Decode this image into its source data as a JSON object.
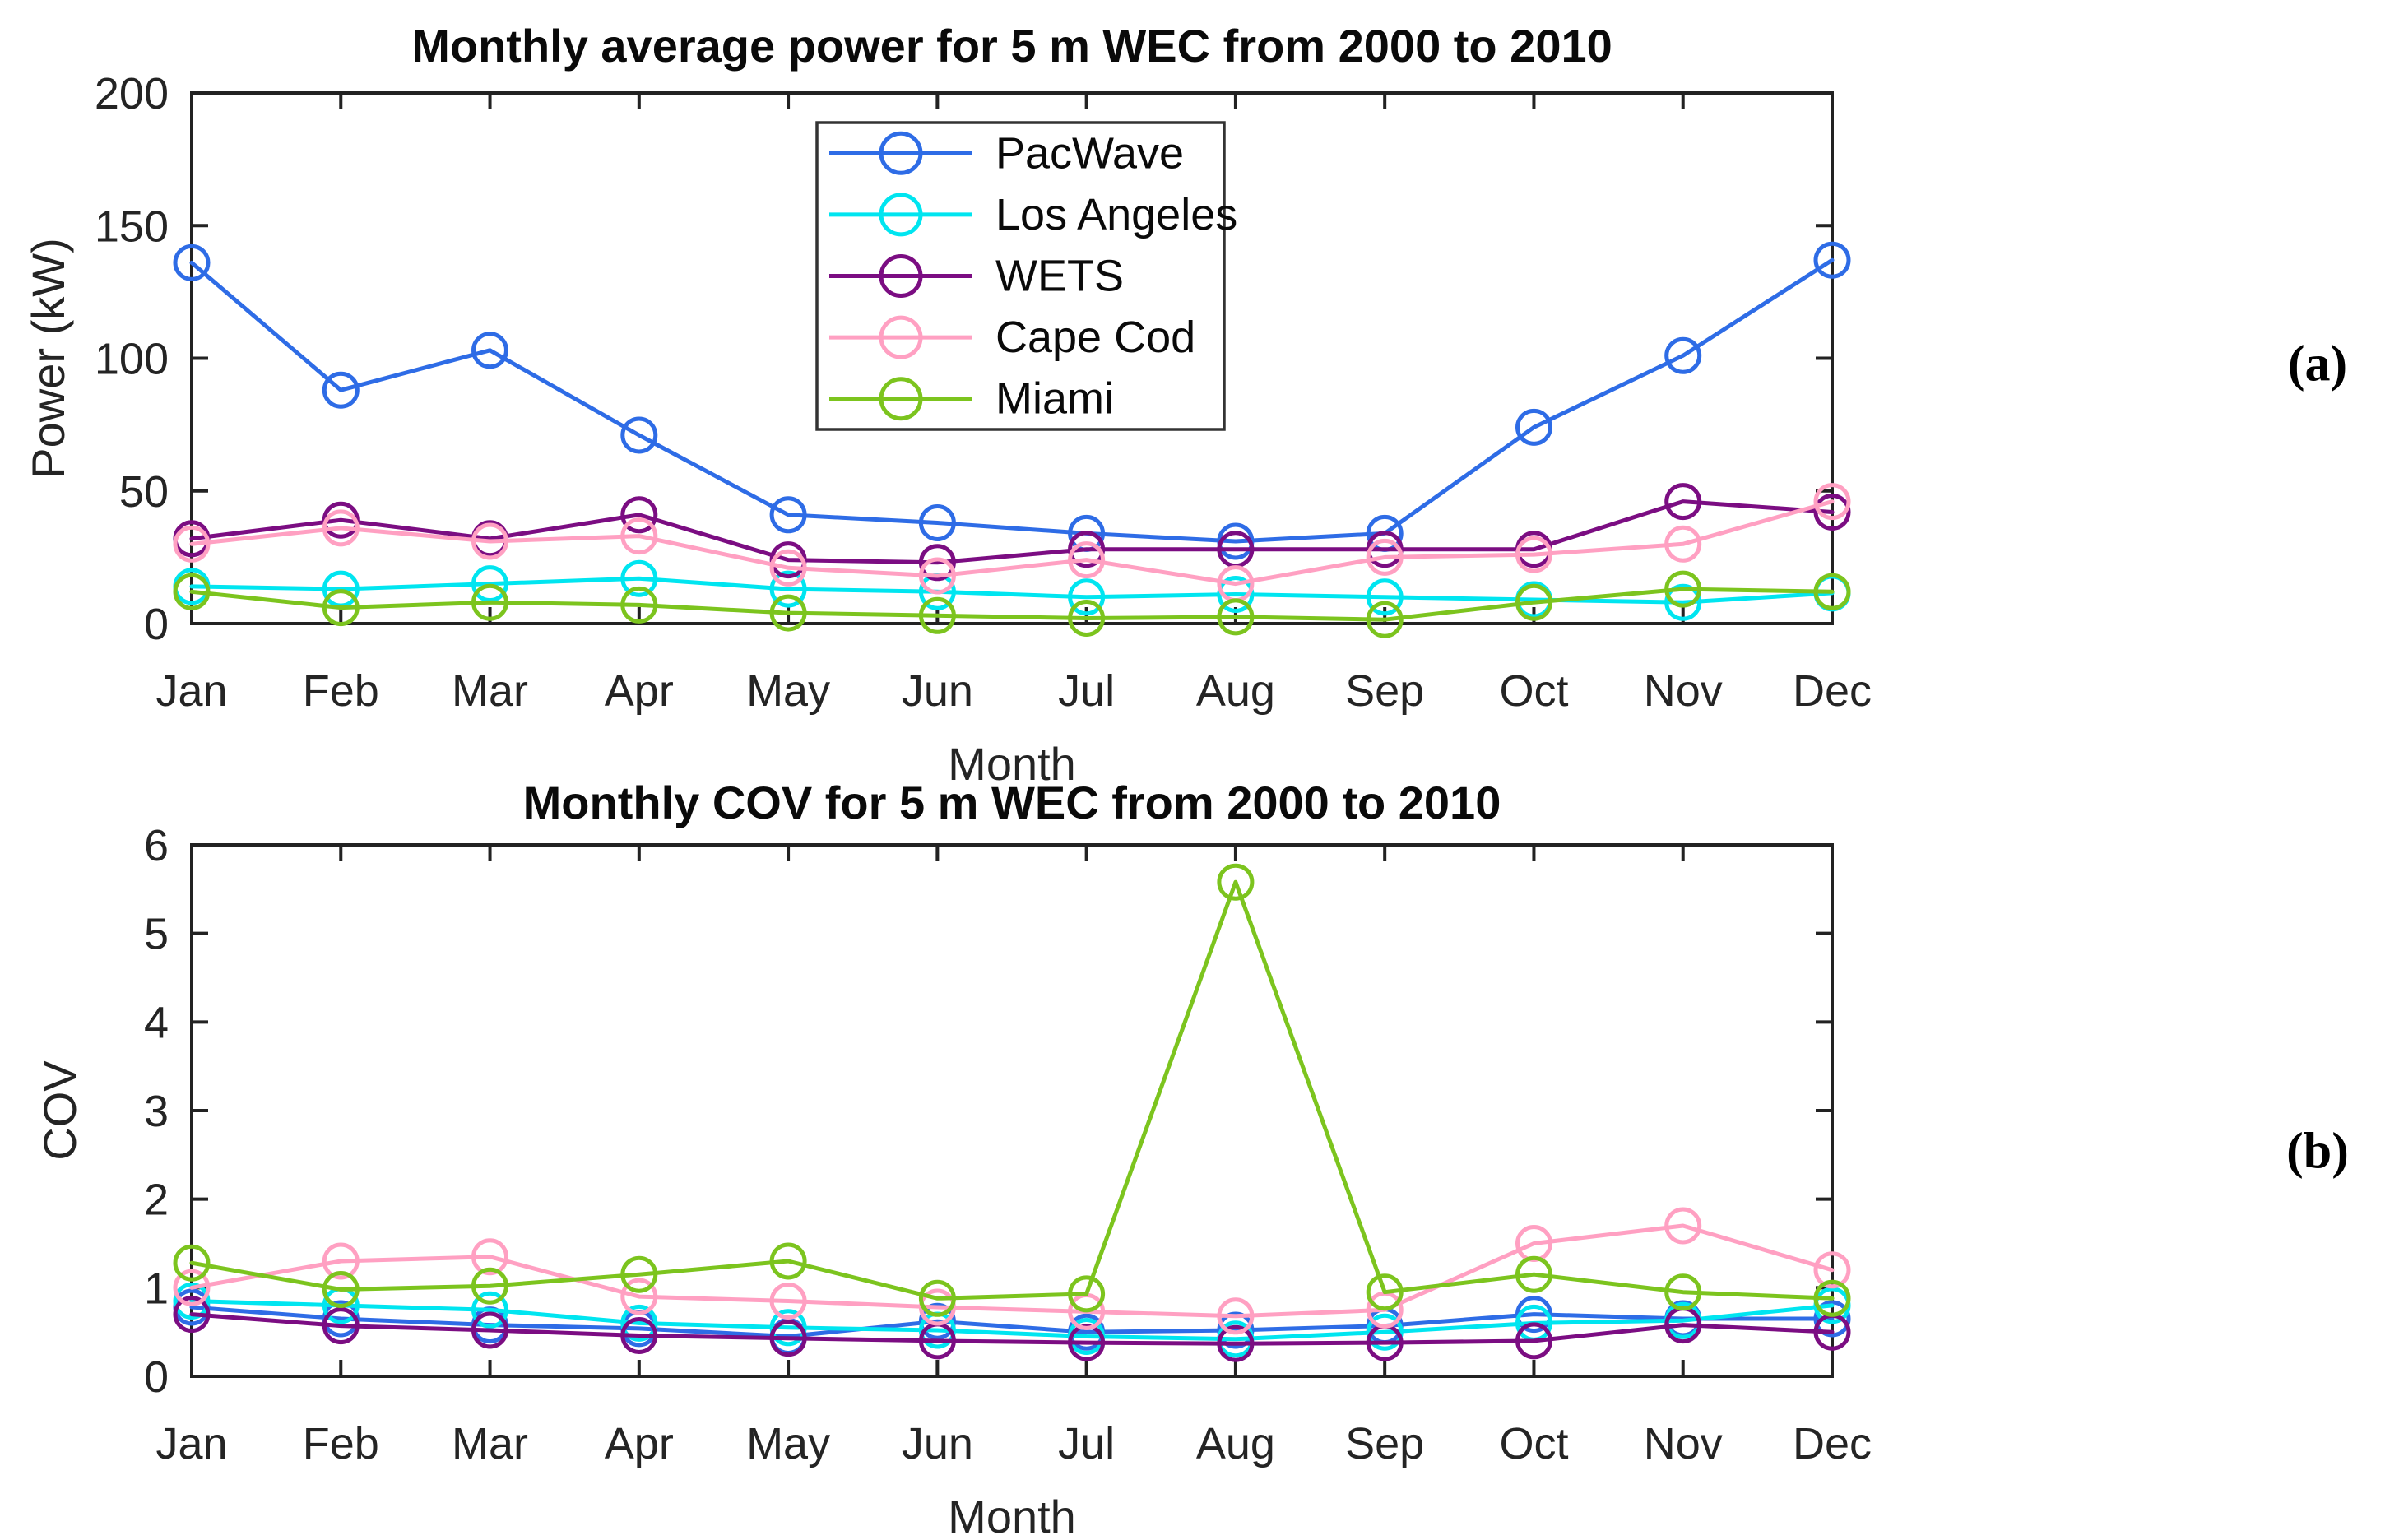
{
  "figure": {
    "background": "#ffffff",
    "axis_color": "#222222",
    "text_color": "#242424"
  },
  "months": [
    "Jan",
    "Feb",
    "Mar",
    "Apr",
    "May",
    "Jun",
    "Jul",
    "Aug",
    "Sep",
    "Oct",
    "Nov",
    "Dec"
  ],
  "panel_labels": {
    "a": "(a)",
    "b": "(b)"
  },
  "chart_data": [
    {
      "type": "line",
      "title": "Monthly average power for 5 m WEC from 2000 to 2010",
      "xlabel": "Month",
      "ylabel": "Power (kW)",
      "ylim": [
        0,
        200
      ],
      "yticks": [
        0,
        50,
        100,
        150,
        200
      ],
      "grid": false,
      "panel_label": "(a)",
      "categories": [
        "Jan",
        "Feb",
        "Mar",
        "Apr",
        "May",
        "Jun",
        "Jul",
        "Aug",
        "Sep",
        "Oct",
        "Nov",
        "Dec"
      ],
      "legend": {
        "visible": true,
        "position": "inside-top-center",
        "entries": [
          "PacWave",
          "Los Angeles",
          "WETS",
          "Cape Cod",
          "Miami"
        ]
      },
      "series": [
        {
          "name": "PacWave",
          "color": "#2e6ce6",
          "marker": "circle",
          "values": [
            136,
            88,
            103,
            71,
            41,
            38,
            34,
            31,
            34,
            74,
            101,
            137
          ]
        },
        {
          "name": "Los Angeles",
          "color": "#00e5f0",
          "marker": "circle",
          "values": [
            14,
            13,
            15,
            17,
            13,
            12,
            10,
            11,
            10,
            9,
            8,
            11.5
          ]
        },
        {
          "name": "WETS",
          "color": "#7b0d82",
          "marker": "circle",
          "values": [
            32,
            39,
            32,
            41,
            24,
            23,
            28,
            28,
            28,
            28,
            46,
            42
          ]
        },
        {
          "name": "Cape Cod",
          "color": "#ffa0c2",
          "marker": "circle",
          "values": [
            30,
            36,
            31,
            33,
            21,
            18,
            24,
            15,
            25,
            26,
            30,
            46
          ]
        },
        {
          "name": "Miami",
          "color": "#7cc41e",
          "marker": "circle",
          "values": [
            12,
            6,
            8,
            7,
            4,
            3,
            2,
            2.5,
            1.5,
            8,
            13,
            12
          ]
        }
      ]
    },
    {
      "type": "line",
      "title": "Monthly COV for 5 m WEC from 2000 to 2010",
      "xlabel": "Month",
      "ylabel": "COV",
      "ylim": [
        0,
        6
      ],
      "yticks": [
        0,
        1,
        2,
        3,
        4,
        5,
        6
      ],
      "grid": false,
      "panel_label": "(b)",
      "categories": [
        "Jan",
        "Feb",
        "Mar",
        "Apr",
        "May",
        "Jun",
        "Jul",
        "Aug",
        "Sep",
        "Oct",
        "Nov",
        "Dec"
      ],
      "legend": {
        "visible": false,
        "entries": []
      },
      "series": [
        {
          "name": "PacWave",
          "color": "#2e6ce6",
          "marker": "circle",
          "values": [
            0.78,
            0.65,
            0.58,
            0.54,
            0.45,
            0.62,
            0.5,
            0.52,
            0.57,
            0.7,
            0.65,
            0.65
          ]
        },
        {
          "name": "Los Angeles",
          "color": "#00e5f0",
          "marker": "circle",
          "values": [
            0.85,
            0.8,
            0.75,
            0.6,
            0.55,
            0.52,
            0.45,
            0.42,
            0.5,
            0.6,
            0.63,
            0.8
          ]
        },
        {
          "name": "WETS",
          "color": "#7b0d82",
          "marker": "circle",
          "values": [
            0.7,
            0.57,
            0.52,
            0.46,
            0.43,
            0.4,
            0.38,
            0.37,
            0.38,
            0.4,
            0.58,
            0.5
          ]
        },
        {
          "name": "Cape Cod",
          "color": "#ffa0c2",
          "marker": "circle",
          "values": [
            1.0,
            1.3,
            1.35,
            0.9,
            0.85,
            0.78,
            0.73,
            0.68,
            0.75,
            1.5,
            1.7,
            1.2
          ]
        },
        {
          "name": "Miami",
          "color": "#7cc41e",
          "marker": "circle",
          "values": [
            1.28,
            0.98,
            1.02,
            1.15,
            1.3,
            0.88,
            0.93,
            5.58,
            0.95,
            1.15,
            0.95,
            0.88
          ]
        }
      ]
    }
  ]
}
